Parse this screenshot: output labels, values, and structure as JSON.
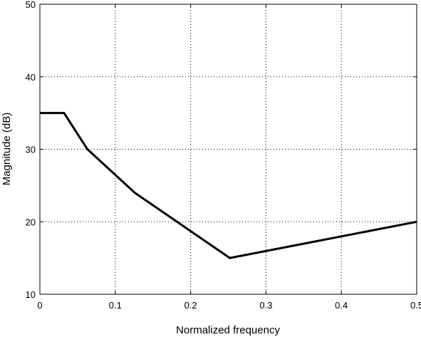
{
  "chart_data": {
    "type": "line",
    "title": "",
    "xlabel": "Normalized frequency",
    "ylabel": "Magnitude (dB)",
    "xlim": [
      0,
      0.5
    ],
    "ylim": [
      10,
      50
    ],
    "xticks": [
      0,
      0.1,
      0.2,
      0.3,
      0.4,
      0.5
    ],
    "xtick_labels": [
      "0",
      "0.1",
      "0.2",
      "0.3",
      "0.4",
      "0.5"
    ],
    "yticks": [
      10,
      20,
      30,
      40,
      50
    ],
    "ytick_labels": [
      "10",
      "20",
      "30",
      "40",
      "50"
    ],
    "grid": true,
    "series": [
      {
        "color": "#000000",
        "x": [
          0,
          0.032,
          0.063,
          0.126,
          0.252,
          0.5
        ],
        "y": [
          35,
          35,
          30,
          24,
          15,
          20
        ]
      }
    ]
  }
}
